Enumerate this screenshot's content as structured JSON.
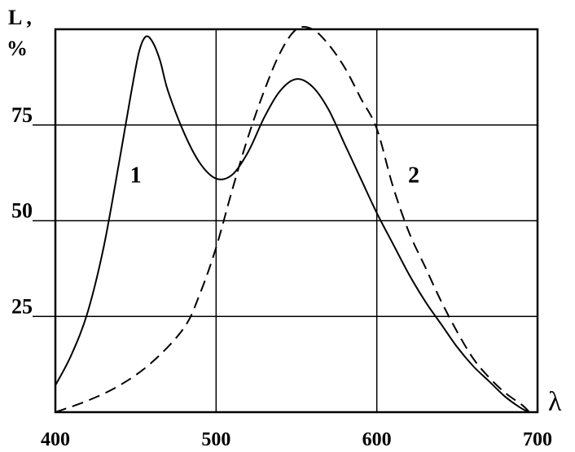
{
  "chart_data": {
    "type": "line",
    "title": "",
    "ylabel_top": "L ,",
    "ylabel_unit": "%",
    "xlabel": "λ",
    "xlim": [
      400,
      700
    ],
    "ylim": [
      0,
      100
    ],
    "x_ticks": [
      "400",
      "500",
      "600",
      "700"
    ],
    "y_ticks": [
      {
        "value": 25,
        "label": "25"
      },
      {
        "value": 50,
        "label": "50"
      },
      {
        "value": 75,
        "label": "75"
      }
    ],
    "grid": true,
    "colors": {
      "line": "#000000",
      "grid": "#000000"
    },
    "series": [
      {
        "name": "1",
        "style": "solid",
        "label_at": [
          450,
          60
        ],
        "points": [
          [
            400,
            7
          ],
          [
            410,
            15
          ],
          [
            420,
            26
          ],
          [
            430,
            43
          ],
          [
            440,
            66
          ],
          [
            447,
            83
          ],
          [
            452,
            94
          ],
          [
            456,
            98
          ],
          [
            460,
            97
          ],
          [
            465,
            92
          ],
          [
            470,
            84
          ],
          [
            480,
            73
          ],
          [
            490,
            65
          ],
          [
            500,
            61
          ],
          [
            510,
            62
          ],
          [
            520,
            68
          ],
          [
            530,
            77
          ],
          [
            540,
            84
          ],
          [
            550,
            87
          ],
          [
            560,
            85
          ],
          [
            570,
            79
          ],
          [
            580,
            70
          ],
          [
            590,
            61
          ],
          [
            600,
            52
          ],
          [
            610,
            44
          ],
          [
            620,
            36
          ],
          [
            630,
            29
          ],
          [
            640,
            23
          ],
          [
            650,
            17
          ],
          [
            660,
            12
          ],
          [
            670,
            8
          ],
          [
            680,
            4
          ],
          [
            690,
            1
          ],
          [
            695,
            0
          ]
        ]
      },
      {
        "name": "2",
        "style": "dashed",
        "label_at": [
          623,
          60
        ],
        "points": [
          [
            400,
            0
          ],
          [
            420,
            3
          ],
          [
            440,
            7
          ],
          [
            460,
            13
          ],
          [
            480,
            22
          ],
          [
            490,
            31
          ],
          [
            500,
            43
          ],
          [
            510,
            58
          ],
          [
            520,
            72
          ],
          [
            530,
            84
          ],
          [
            540,
            94
          ],
          [
            550,
            100
          ],
          [
            560,
            100
          ],
          [
            570,
            96
          ],
          [
            580,
            90
          ],
          [
            590,
            82
          ],
          [
            600,
            74
          ],
          [
            610,
            59
          ],
          [
            620,
            47
          ],
          [
            630,
            38
          ],
          [
            640,
            29
          ],
          [
            650,
            21
          ],
          [
            660,
            14
          ],
          [
            670,
            9
          ],
          [
            680,
            5
          ],
          [
            690,
            2
          ],
          [
            695,
            0
          ]
        ]
      }
    ]
  }
}
